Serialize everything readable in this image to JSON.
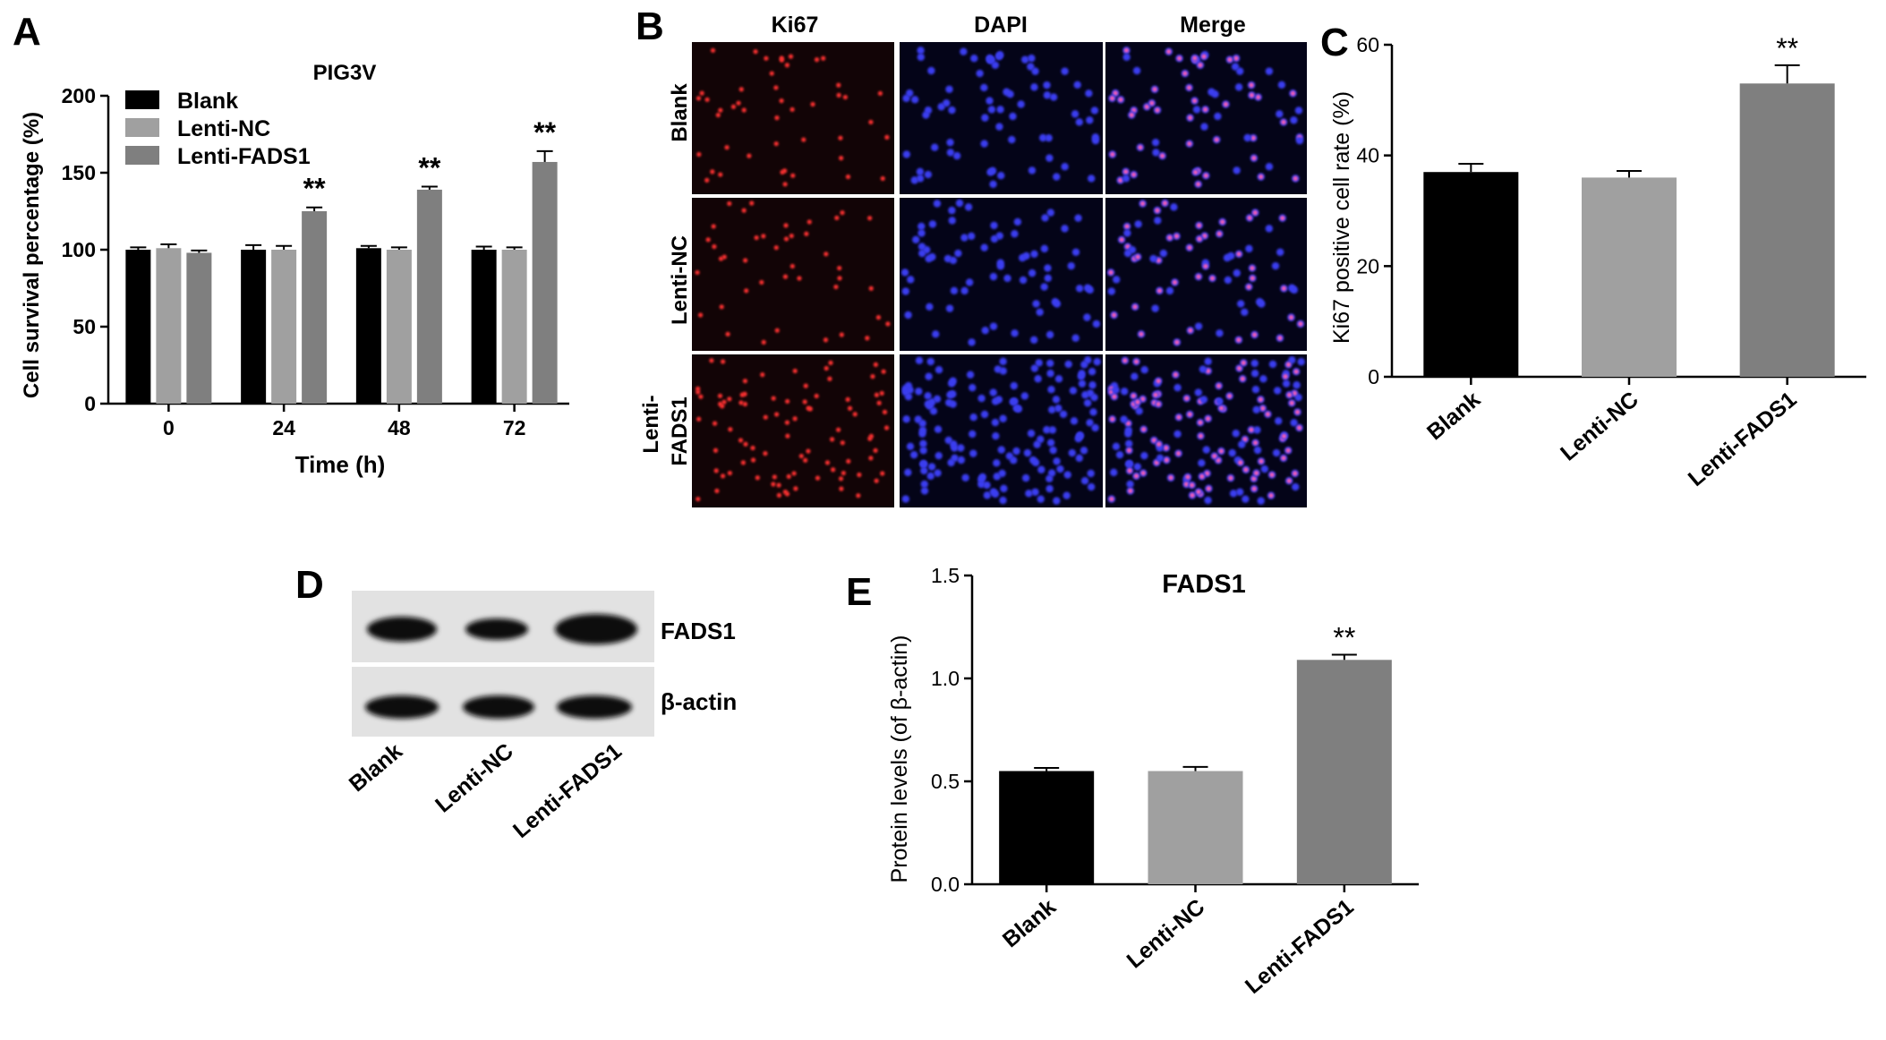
{
  "panels": {
    "A": {
      "letter": "A",
      "chart_data": {
        "type": "bar",
        "title": "PIG3V",
        "xlabel": "Time (h)",
        "ylabel": "Cell survival percentage (%)",
        "categories": [
          "0",
          "24",
          "48",
          "72"
        ],
        "ylim": [
          0,
          200
        ],
        "yticks": [
          0,
          50,
          100,
          150,
          200
        ],
        "legend_position": "top-left",
        "series": [
          {
            "name": "Blank",
            "color": "#000000",
            "values": [
              100,
              100,
              101,
              100
            ],
            "errors": [
              1.5,
              3,
              1.5,
              2
            ]
          },
          {
            "name": "Lenti-NC",
            "color": "#a0a0a0",
            "values": [
              101,
              100,
              100,
              100
            ],
            "errors": [
              2.5,
              2.5,
              1.5,
              1.5
            ]
          },
          {
            "name": "Lenti-FADS1",
            "color": "#7f7f7f",
            "values": [
              98,
              125,
              139,
              157
            ],
            "errors": [
              1.5,
              2.5,
              2,
              7
            ]
          }
        ],
        "annotations": [
          {
            "category": "24",
            "series": "Lenti-FADS1",
            "text": "**"
          },
          {
            "category": "48",
            "series": "Lenti-FADS1",
            "text": "**"
          },
          {
            "category": "72",
            "series": "Lenti-FADS1",
            "text": "**"
          }
        ]
      }
    },
    "B": {
      "letter": "B",
      "columns": [
        "Ki67",
        "DAPI",
        "Merge"
      ],
      "rows": [
        "Blank",
        "Lenti-NC",
        "Lenti-FADS1"
      ],
      "row_labels_display": [
        [
          "Blank"
        ],
        [
          "Lenti-NC"
        ],
        [
          "Lenti-",
          "FADS1"
        ]
      ]
    },
    "C": {
      "letter": "C",
      "chart_data": {
        "type": "bar",
        "title": "",
        "xlabel": "",
        "ylabel": "Ki67 positive cell rate (%)",
        "categories": [
          "Blank",
          "Lenti-NC",
          "Lenti-FADS1"
        ],
        "ylim": [
          0,
          60
        ],
        "yticks": [
          0,
          20,
          40,
          60
        ],
        "series": [
          {
            "values": [
              37,
              36,
              53
            ],
            "errors": [
              1.5,
              1.2,
              3.3
            ],
            "colors": [
              "#000000",
              "#a0a0a0",
              "#7f7f7f"
            ]
          }
        ],
        "annotations": [
          {
            "category": "Lenti-FADS1",
            "text": "**"
          }
        ]
      }
    },
    "D": {
      "letter": "D",
      "bands": [
        "FADS1",
        "β-actin"
      ],
      "lanes": [
        "Blank",
        "Lenti-NC",
        "Lenti-FADS1"
      ]
    },
    "E": {
      "letter": "E",
      "chart_data": {
        "type": "bar",
        "title": "FADS1",
        "xlabel": "",
        "ylabel": "Protein levels (of β-actin)",
        "categories": [
          "Blank",
          "Lenti-NC",
          "Lenti-FADS1"
        ],
        "ylim": [
          0,
          1.5
        ],
        "yticks": [
          "0.0",
          "0.5",
          "1.0",
          "1.5"
        ],
        "series": [
          {
            "values": [
              0.55,
              0.55,
              1.09
            ],
            "errors": [
              0.015,
              0.02,
              0.025
            ],
            "colors": [
              "#000000",
              "#a0a0a0",
              "#7f7f7f"
            ]
          }
        ],
        "annotations": [
          {
            "category": "Lenti-FADS1",
            "text": "**"
          }
        ]
      }
    }
  }
}
